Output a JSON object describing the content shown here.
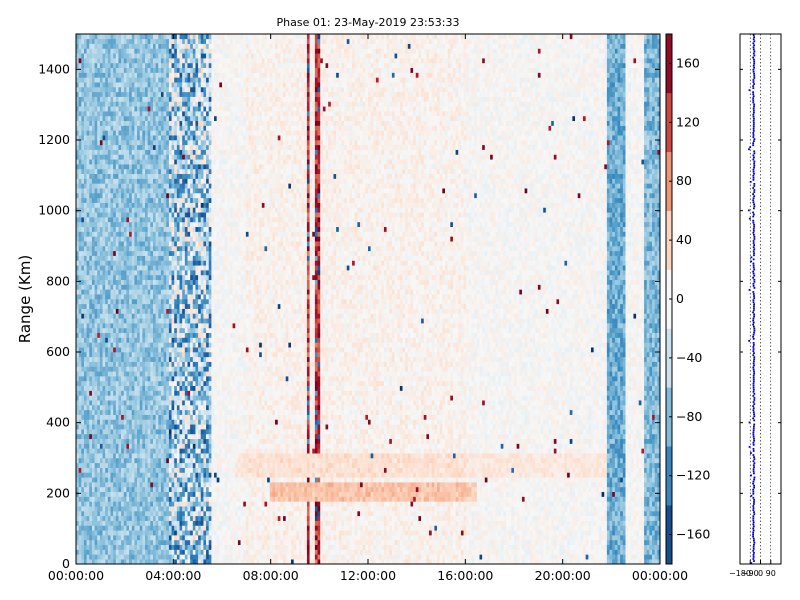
{
  "chart_data": [
    {
      "type": "heatmap",
      "title": "Phase 01: 23-May-2019 23:53:33",
      "ylabel": "Range (Km)",
      "xlabel": "",
      "x_ticks": [
        "00:00:00",
        "04:00:00",
        "08:00:00",
        "12:00:00",
        "16:00:00",
        "20:00:00",
        "00:00:00"
      ],
      "x_range_hours": [
        0,
        24
      ],
      "y_ticks": [
        0,
        200,
        400,
        600,
        800,
        1000,
        1200,
        1400
      ],
      "ylim": [
        0,
        1500
      ],
      "value_range": [
        -180,
        180
      ],
      "colormap": "RdBu_r",
      "colorbar_ticks": [
        160,
        120,
        80,
        40,
        0,
        -40,
        -80,
        -120,
        -160
      ],
      "grid": false,
      "features": [
        {
          "kind": "column",
          "x_hours": [
            9.45,
            9.6
          ],
          "value": 165
        },
        {
          "kind": "column",
          "x_hours": [
            9.8,
            10.0
          ],
          "value": 170
        },
        {
          "kind": "band",
          "x_hours": [
            8.0,
            16.5
          ],
          "y_range": [
            180,
            230
          ],
          "value": 45
        },
        {
          "kind": "band",
          "x_hours": [
            6.5,
            22.0
          ],
          "y_range": [
            240,
            320
          ],
          "value": 20
        },
        {
          "kind": "noisy_region",
          "x_hours": [
            3.8,
            5.6
          ],
          "value": -60
        },
        {
          "kind": "blue_region",
          "x_hours": [
            0,
            3.8
          ],
          "value": -70
        },
        {
          "kind": "blue_region",
          "x_hours": [
            21.8,
            22.6
          ],
          "value": -90
        },
        {
          "kind": "blue_region",
          "x_hours": [
            23.3,
            24
          ],
          "value": -80
        }
      ]
    },
    {
      "type": "scatter",
      "title": "",
      "x_ticks": [
        -180,
        -90,
        0,
        90
      ],
      "x_tick_labels": [
        "−180",
        "−90",
        "0",
        "90"
      ],
      "xlim": [
        -180,
        180
      ],
      "ylim": [
        0,
        1500
      ],
      "center_value": -60,
      "spread": 12,
      "series_color": "#0000cc",
      "grid": "vertical dotted"
    }
  ]
}
